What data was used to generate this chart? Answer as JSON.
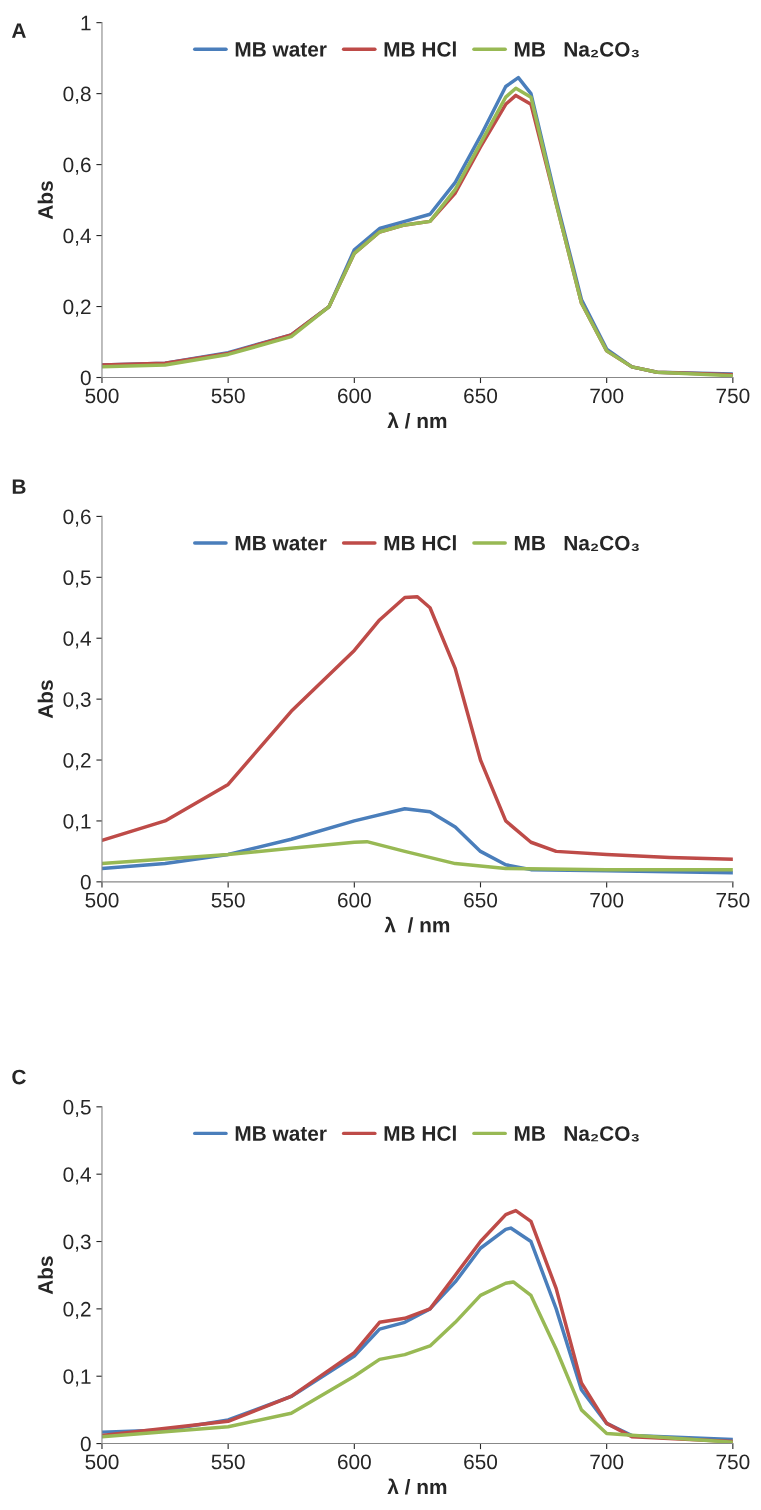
{
  "chart_data": [
    {
      "type": "line",
      "title": "A",
      "xlabel": "λ / nm",
      "ylabel": "Abs",
      "legend": "top",
      "xlim": [
        500,
        750
      ],
      "xticks": [
        500,
        550,
        600,
        650,
        700,
        750
      ],
      "ylim": [
        0,
        1
      ],
      "yticks": [
        0,
        {
          "value": 0.2,
          "label": "0,2"
        },
        {
          "value": 0.4,
          "label": "0,4"
        },
        {
          "value": 0.6,
          "label": "0,6"
        },
        {
          "value": 0.8,
          "label": "0,8"
        },
        1
      ],
      "series": [
        {
          "name": "MB water",
          "color": "#4a7ebb",
          "x": [
            500,
            525,
            550,
            575,
            590,
            600,
            610,
            620,
            630,
            640,
            650,
            660,
            665,
            670,
            680,
            690,
            700,
            710,
            720,
            750
          ],
          "values": [
            0.035,
            0.04,
            0.07,
            0.12,
            0.2,
            0.36,
            0.42,
            0.44,
            0.46,
            0.55,
            0.68,
            0.82,
            0.845,
            0.8,
            0.5,
            0.22,
            0.08,
            0.03,
            0.015,
            0.01
          ]
        },
        {
          "name": "MB HCl",
          "color": "#be4b48",
          "x": [
            500,
            525,
            550,
            575,
            590,
            600,
            610,
            620,
            630,
            640,
            650,
            660,
            664,
            670,
            680,
            690,
            700,
            710,
            720,
            750
          ],
          "values": [
            0.035,
            0.04,
            0.068,
            0.12,
            0.2,
            0.35,
            0.41,
            0.43,
            0.44,
            0.52,
            0.65,
            0.77,
            0.795,
            0.77,
            0.49,
            0.21,
            0.075,
            0.03,
            0.015,
            0.008
          ]
        },
        {
          "name": "MB   Na₂CO₃",
          "color": "#98b954",
          "x": [
            500,
            525,
            550,
            575,
            590,
            600,
            610,
            620,
            630,
            640,
            650,
            660,
            664,
            670,
            680,
            690,
            700,
            710,
            720,
            750
          ],
          "values": [
            0.03,
            0.035,
            0.065,
            0.115,
            0.2,
            0.35,
            0.41,
            0.43,
            0.44,
            0.53,
            0.66,
            0.79,
            0.815,
            0.79,
            0.49,
            0.21,
            0.075,
            0.03,
            0.015,
            0.005
          ]
        }
      ]
    },
    {
      "type": "line",
      "title": "B",
      "xlabel": "λ  / nm",
      "ylabel": "Abs",
      "legend": "top",
      "xlim": [
        500,
        750
      ],
      "xticks": [
        500,
        550,
        600,
        650,
        700,
        750
      ],
      "ylim": [
        0,
        0.6
      ],
      "yticks": [
        0,
        {
          "value": 0.1,
          "label": "0,1"
        },
        {
          "value": 0.2,
          "label": "0,2"
        },
        {
          "value": 0.3,
          "label": "0,3"
        },
        {
          "value": 0.4,
          "label": "0,4"
        },
        {
          "value": 0.5,
          "label": "0,5"
        },
        {
          "value": 0.6,
          "label": "0,6"
        }
      ],
      "series": [
        {
          "name": "MB water",
          "color": "#4a7ebb",
          "x": [
            500,
            525,
            550,
            575,
            600,
            620,
            630,
            640,
            650,
            660,
            670,
            700,
            750
          ],
          "values": [
            0.022,
            0.03,
            0.045,
            0.07,
            0.1,
            0.12,
            0.115,
            0.09,
            0.05,
            0.028,
            0.02,
            0.018,
            0.015
          ]
        },
        {
          "name": "MB HCl",
          "color": "#be4b48",
          "x": [
            500,
            525,
            550,
            575,
            600,
            610,
            620,
            625,
            630,
            640,
            650,
            660,
            670,
            680,
            700,
            725,
            750
          ],
          "values": [
            0.068,
            0.1,
            0.16,
            0.28,
            0.38,
            0.43,
            0.467,
            0.468,
            0.45,
            0.35,
            0.2,
            0.1,
            0.065,
            0.05,
            0.045,
            0.04,
            0.037
          ]
        },
        {
          "name": "MB   Na₂CO₃",
          "color": "#98b954",
          "x": [
            500,
            550,
            575,
            600,
            605,
            620,
            640,
            660,
            700,
            750
          ],
          "values": [
            0.03,
            0.045,
            0.055,
            0.065,
            0.066,
            0.05,
            0.03,
            0.022,
            0.02,
            0.02
          ]
        }
      ]
    },
    {
      "type": "line",
      "title": "C",
      "xlabel": "λ / nm",
      "ylabel": "Abs",
      "legend": "top",
      "xlim": [
        500,
        750
      ],
      "xticks": [
        500,
        550,
        600,
        650,
        700,
        750
      ],
      "ylim": [
        0,
        0.5
      ],
      "yticks": [
        0,
        {
          "value": 0.1,
          "label": "0,1"
        },
        {
          "value": 0.2,
          "label": "0,2"
        },
        {
          "value": 0.3,
          "label": "0,3"
        },
        {
          "value": 0.4,
          "label": "0,4"
        },
        {
          "value": 0.5,
          "label": "0,5"
        }
      ],
      "series": [
        {
          "name": "MB water",
          "color": "#4a7ebb",
          "x": [
            500,
            525,
            550,
            575,
            600,
            610,
            620,
            630,
            640,
            650,
            660,
            662,
            670,
            680,
            690,
            700,
            710,
            750
          ],
          "values": [
            0.017,
            0.02,
            0.035,
            0.07,
            0.13,
            0.17,
            0.18,
            0.2,
            0.24,
            0.29,
            0.318,
            0.32,
            0.3,
            0.2,
            0.08,
            0.03,
            0.012,
            0.006
          ]
        },
        {
          "name": "MB HCl",
          "color": "#be4b48",
          "x": [
            500,
            550,
            575,
            600,
            610,
            620,
            630,
            640,
            650,
            660,
            664,
            670,
            680,
            690,
            700,
            710,
            750
          ],
          "values": [
            0.012,
            0.033,
            0.07,
            0.135,
            0.18,
            0.186,
            0.2,
            0.25,
            0.3,
            0.34,
            0.346,
            0.33,
            0.23,
            0.09,
            0.03,
            0.01,
            0.003
          ]
        },
        {
          "name": "MB   Na₂CO₃",
          "color": "#98b954",
          "x": [
            500,
            550,
            575,
            600,
            610,
            620,
            630,
            640,
            650,
            660,
            663,
            670,
            680,
            690,
            700,
            750
          ],
          "values": [
            0.01,
            0.025,
            0.045,
            0.1,
            0.125,
            0.132,
            0.145,
            0.18,
            0.22,
            0.238,
            0.24,
            0.22,
            0.14,
            0.05,
            0.015,
            0.002
          ]
        }
      ]
    }
  ]
}
